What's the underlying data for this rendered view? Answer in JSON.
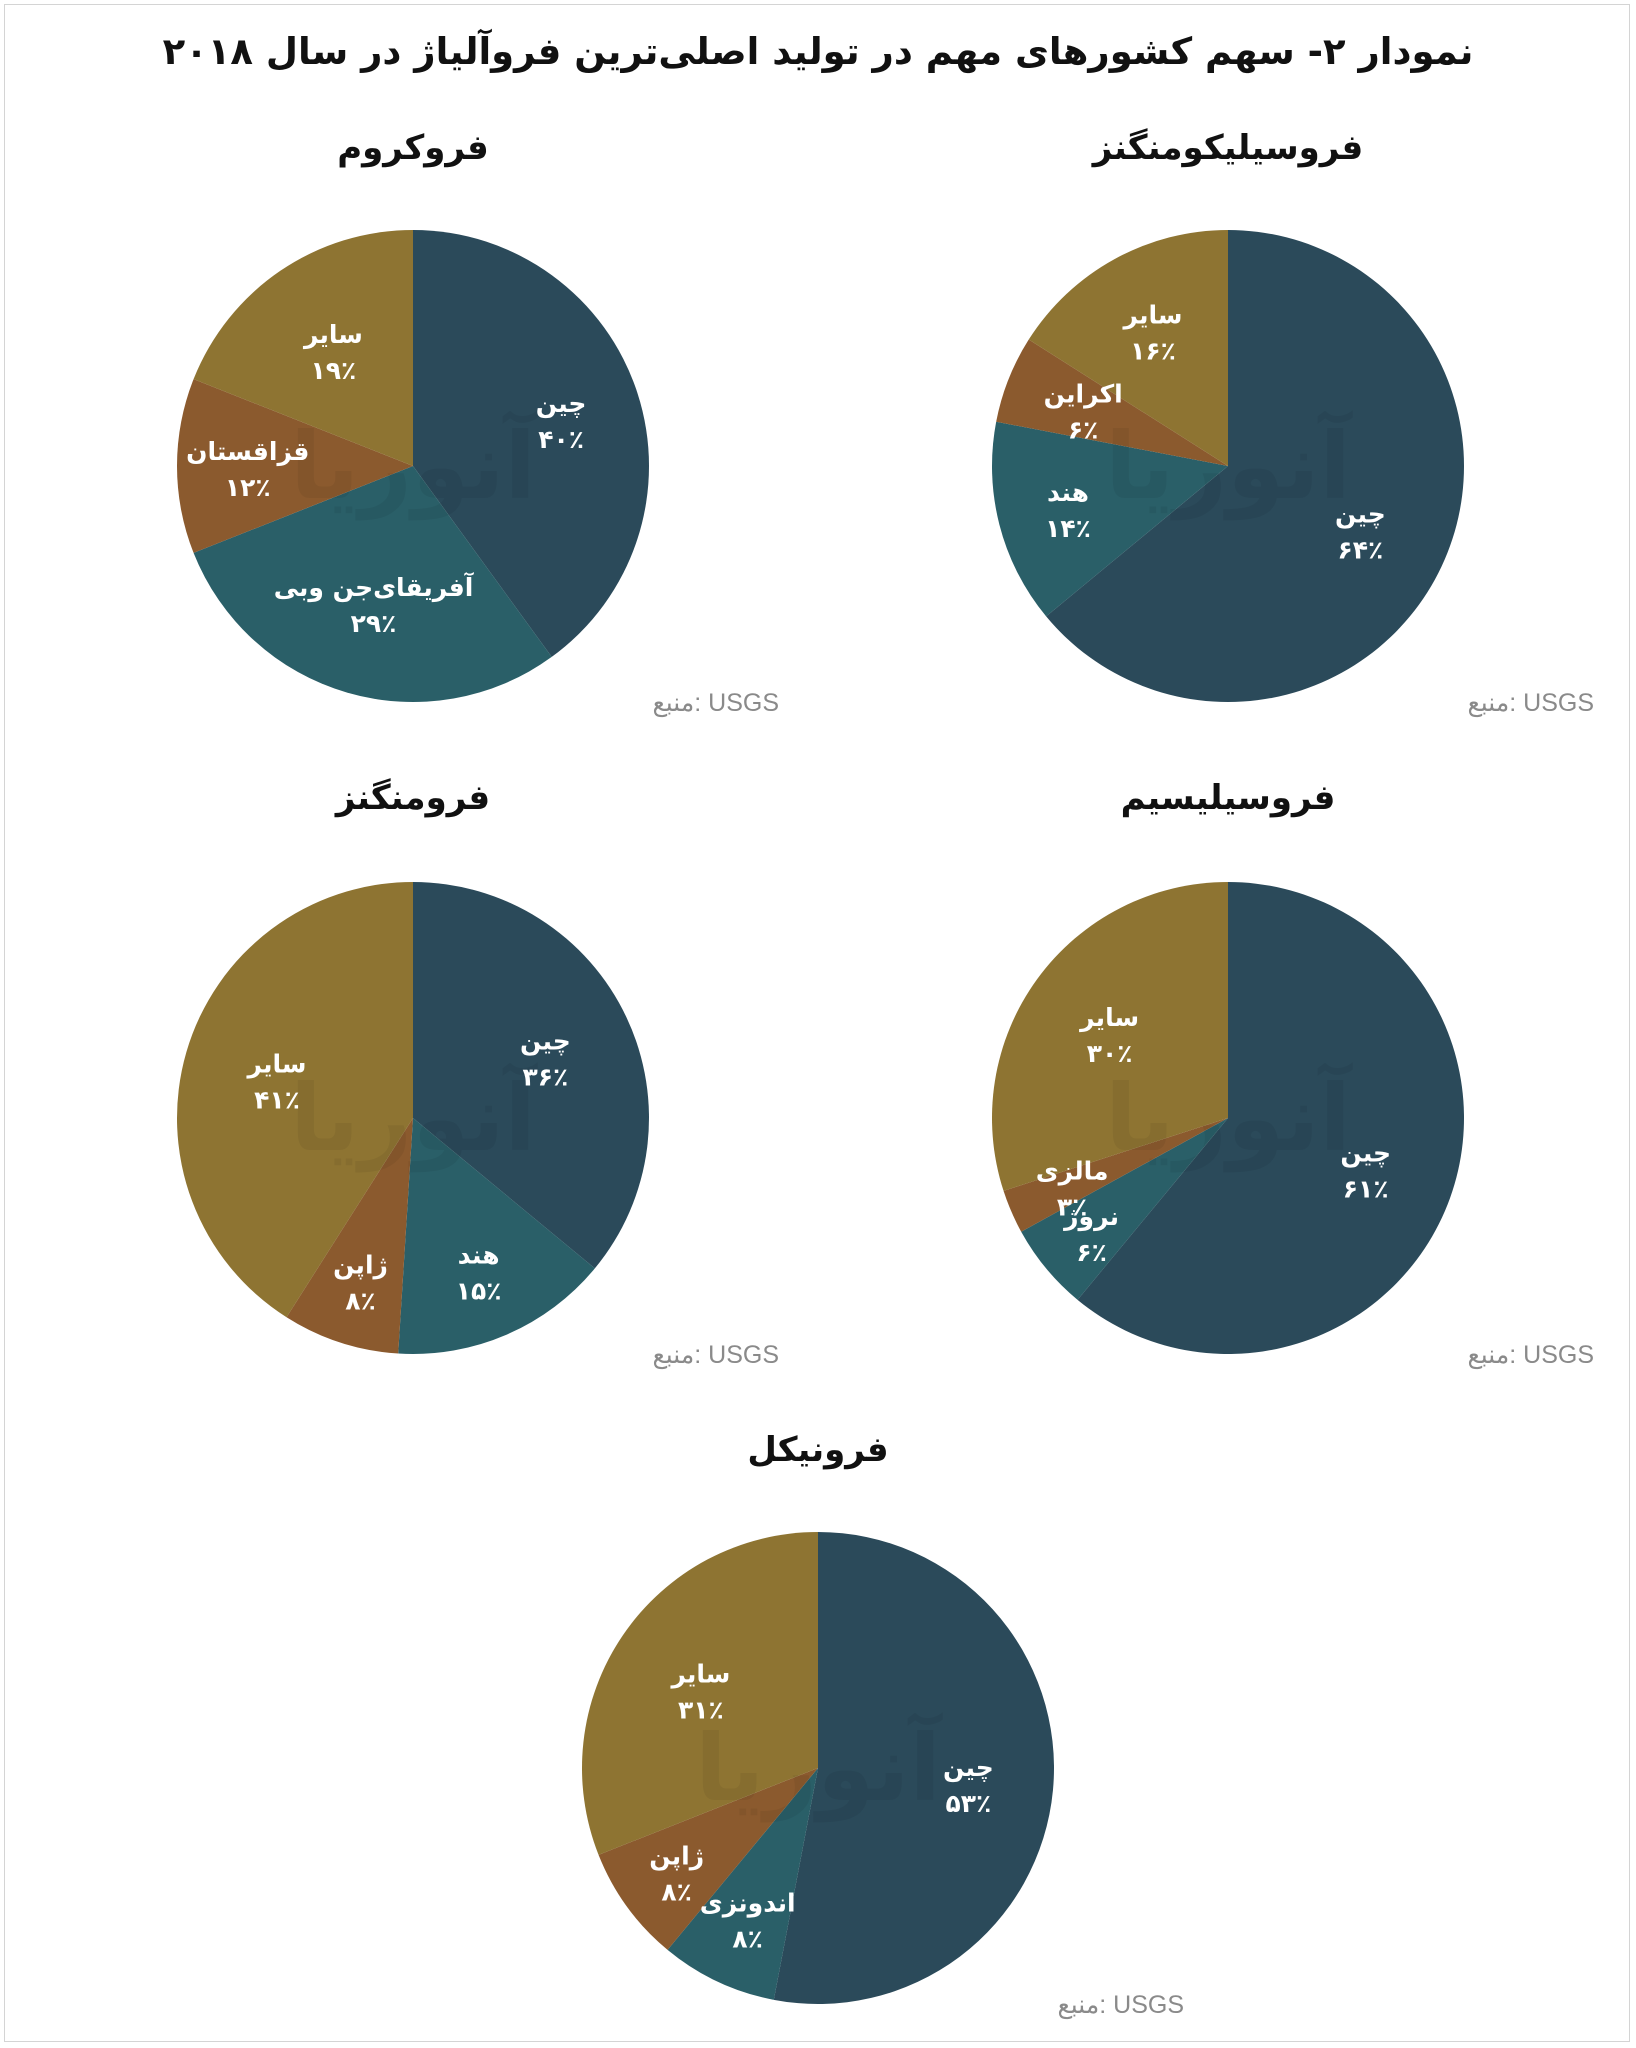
{
  "title": "نمودار ۲- سهم کشورهای مهم در تولید اصلی‌ترین فروآلیاژ در سال ۲۰۱۸",
  "colors": {
    "navy": "#2b4a5a",
    "teal": "#2a5f68",
    "rust": "#8b5a2e",
    "gold": "#8e7432"
  },
  "watermark_text": "آنوریا",
  "chart_data": [
    {
      "type": "pie",
      "title": "فروسیلیکومنگنز",
      "source": "منبع: USGS",
      "slices": [
        {
          "label": "چین",
          "value": 64,
          "value_text": "۶۴٪",
          "color": "#2b4a5a"
        },
        {
          "label": "هند",
          "value": 14,
          "value_text": "۱۴٪",
          "color": "#2a5f68"
        },
        {
          "label": "اکراین",
          "value": 6,
          "value_text": "۶٪",
          "color": "#8b5a2e"
        },
        {
          "label": "سایر",
          "value": 16,
          "value_text": "۱۶٪",
          "color": "#8e7432"
        }
      ]
    },
    {
      "type": "pie",
      "title": "فروکروم",
      "source": "منبع: USGS",
      "slices": [
        {
          "label": "چین",
          "value": 40,
          "value_text": "۴۰٪",
          "color": "#2b4a5a"
        },
        {
          "label": "آفریقای‌جن وبی",
          "value": 29,
          "value_text": "۲۹٪",
          "color": "#2a5f68"
        },
        {
          "label": "قزاقستان",
          "value": 12,
          "value_text": "۱۲٪",
          "color": "#8b5a2e"
        },
        {
          "label": "سایر",
          "value": 19,
          "value_text": "۱۹٪",
          "color": "#8e7432"
        }
      ]
    },
    {
      "type": "pie",
      "title": "فروسیلیسیم",
      "source": "منبع: USGS",
      "slices": [
        {
          "label": "چین",
          "value": 61,
          "value_text": "۶۱٪",
          "color": "#2b4a5a"
        },
        {
          "label": "نروژ",
          "value": 6,
          "value_text": "۶٪",
          "color": "#2a5f68"
        },
        {
          "label": "مالزی",
          "value": 3,
          "value_text": "۳٪",
          "color": "#8b5a2e"
        },
        {
          "label": "سایر",
          "value": 30,
          "value_text": "۳۰٪",
          "color": "#8e7432"
        }
      ]
    },
    {
      "type": "pie",
      "title": "فرومنگنز",
      "source": "منبع: USGS",
      "slices": [
        {
          "label": "چین",
          "value": 36,
          "value_text": "۳۶٪",
          "color": "#2b4a5a"
        },
        {
          "label": "هند",
          "value": 15,
          "value_text": "۱۵٪",
          "color": "#2a5f68"
        },
        {
          "label": "ژاپن",
          "value": 8,
          "value_text": "۸٪",
          "color": "#8b5a2e"
        },
        {
          "label": "سایر",
          "value": 41,
          "value_text": "۴۱٪",
          "color": "#8e7432"
        }
      ]
    },
    {
      "type": "pie",
      "title": "فرونیکل",
      "source": "منبع: USGS",
      "slices": [
        {
          "label": "چین",
          "value": 53,
          "value_text": "۵۳٪",
          "color": "#2b4a5a"
        },
        {
          "label": "اندونزی",
          "value": 8,
          "value_text": "۸٪",
          "color": "#2a5f68"
        },
        {
          "label": "ژاپن",
          "value": 8,
          "value_text": "۸٪",
          "color": "#8b5a2e"
        },
        {
          "label": "سایر",
          "value": 31,
          "value_text": "۳۱٪",
          "color": "#8e7432"
        }
      ]
    }
  ]
}
